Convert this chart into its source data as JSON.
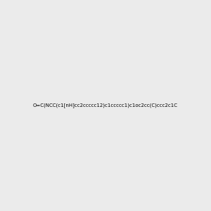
{
  "smiles": "O=C(NCC(c1[nH]cc2ccccc12)c1ccccc1)c1oc2cc(C)ccc2c1C",
  "background_color": "#ebebeb",
  "figsize": [
    3.0,
    3.0
  ],
  "dpi": 100,
  "img_size": [
    300,
    300
  ]
}
